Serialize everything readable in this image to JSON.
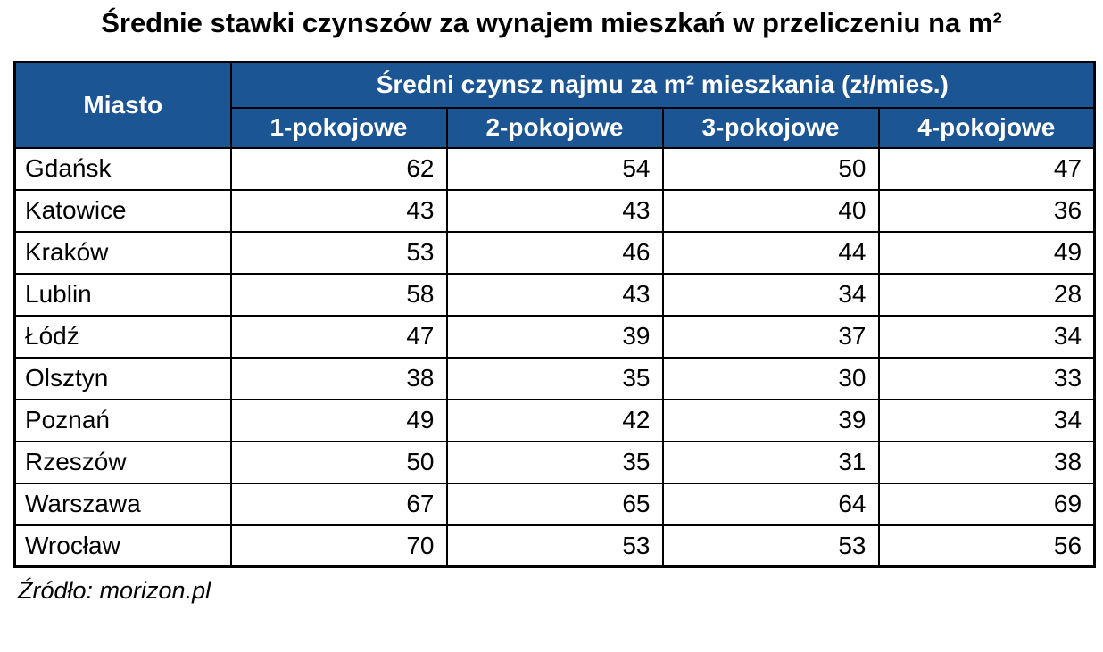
{
  "title": "Średnie stawki czynszów za wynajem mieszkań w przeliczeniu na m²",
  "source": "Źródło: morizon.pl",
  "colors": {
    "header_bg": "#1B5593",
    "header_text": "#FFFFFF",
    "border": "#000000",
    "text": "#000000"
  },
  "table": {
    "corner_header": "Miasto",
    "group_header": "Średni czynsz najmu za m² mieszkania (zł/mies.)",
    "room_headers": [
      "1-pokojowe",
      "2-pokojowe",
      "3-pokojowe",
      "4-pokojowe"
    ],
    "rows": [
      {
        "city": "Gdańsk",
        "values": [
          62,
          54,
          50,
          47
        ]
      },
      {
        "city": "Katowice",
        "values": [
          43,
          43,
          40,
          36
        ]
      },
      {
        "city": "Kraków",
        "values": [
          53,
          46,
          44,
          49
        ]
      },
      {
        "city": "Lublin",
        "values": [
          58,
          43,
          34,
          28
        ]
      },
      {
        "city": "Łódź",
        "values": [
          47,
          39,
          37,
          34
        ]
      },
      {
        "city": "Olsztyn",
        "values": [
          38,
          35,
          30,
          33
        ]
      },
      {
        "city": "Poznań",
        "values": [
          49,
          42,
          39,
          34
        ]
      },
      {
        "city": "Rzeszów",
        "values": [
          50,
          35,
          31,
          38
        ]
      },
      {
        "city": "Warszawa",
        "values": [
          67,
          65,
          64,
          69
        ]
      },
      {
        "city": "Wrocław",
        "values": [
          70,
          53,
          53,
          56
        ]
      }
    ]
  },
  "chart_data": {
    "type": "table",
    "title": "Średnie stawki czynszów za wynajem mieszkań w przeliczeniu na m²",
    "categories": [
      "Gdańsk",
      "Katowice",
      "Kraków",
      "Lublin",
      "Łódź",
      "Olsztyn",
      "Poznań",
      "Rzeszów",
      "Warszawa",
      "Wrocław"
    ],
    "series": [
      {
        "name": "1-pokojowe",
        "values": [
          62,
          43,
          53,
          58,
          47,
          38,
          49,
          50,
          67,
          70
        ]
      },
      {
        "name": "2-pokojowe",
        "values": [
          54,
          43,
          46,
          43,
          39,
          35,
          42,
          35,
          65,
          53
        ]
      },
      {
        "name": "3-pokojowe",
        "values": [
          50,
          40,
          44,
          34,
          37,
          30,
          39,
          31,
          64,
          53
        ]
      },
      {
        "name": "4-pokojowe",
        "values": [
          47,
          36,
          49,
          28,
          34,
          33,
          34,
          38,
          69,
          56
        ]
      }
    ],
    "value_unit": "zł/mies. za m²",
    "group_header": "Średni czynsz najmu za m² mieszkania (zł/mies.)",
    "row_header_label": "Miasto",
    "source": "Źródło: morizon.pl"
  }
}
